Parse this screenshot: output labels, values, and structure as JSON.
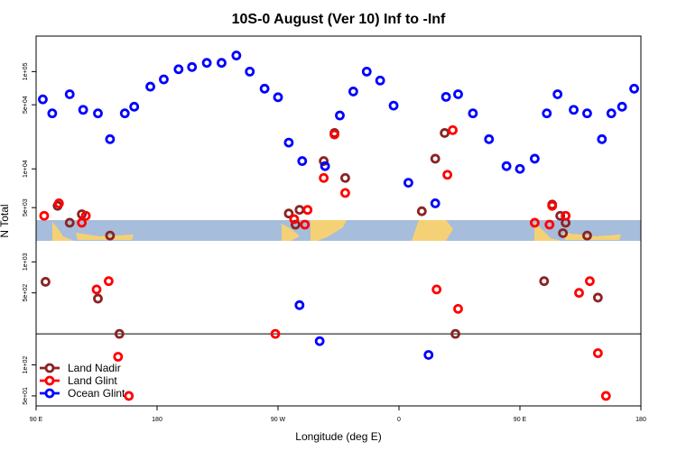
{
  "chart_data": {
    "type": "scatter",
    "title": "10S-0 August (Ver 10)   Inf to -Inf",
    "xlabel": "Longitude (deg E)",
    "ylabel": "N Total",
    "x_ticks": [
      {
        "x": 90,
        "label": "90 E"
      },
      {
        "x": 180,
        "label": "180"
      },
      {
        "x": 270,
        "label": "90 W"
      },
      {
        "x": 360,
        "label": "0"
      },
      {
        "x": 450,
        "label": "90 E"
      },
      {
        "x": 540,
        "label": "180"
      }
    ],
    "xlim": [
      90,
      540
    ],
    "upper_panel": {
      "scale": "log",
      "ylim": [
        40000,
        210000
      ],
      "y_ticks": [
        {
          "y": 50000,
          "label": "5e+04"
        },
        {
          "y": 100000,
          "label": "1e+05"
        }
      ]
    },
    "middle_panel": {
      "scale": "log",
      "ylim": [
        4000,
        26000
      ],
      "y_ticks": [
        {
          "y": 5000,
          "label": "5e+03"
        },
        {
          "y": 10000,
          "label": "1e+04"
        }
      ]
    },
    "lower_panel": {
      "scale": "log",
      "ylim": [
        40,
        1600
      ],
      "y_ticks": [
        {
          "y": 50,
          "label": "5e+01"
        },
        {
          "y": 100,
          "label": "1e+02"
        },
        {
          "y": 500,
          "label": "5e+02"
        },
        {
          "y": 1000,
          "label": "1e+03"
        }
      ]
    },
    "reference_line_y": 200,
    "legend_position": "bottom-left",
    "series": [
      {
        "name": "Land Nadir",
        "color": "#8b2323",
        "points": [
          [
            106,
            3500
          ],
          [
            115,
            2400
          ],
          [
            97,
            640
          ],
          [
            124,
            2900
          ],
          [
            136,
            440
          ],
          [
            145,
            1800
          ],
          [
            152,
            200
          ],
          [
            278,
            4500
          ],
          [
            283,
            2300
          ],
          [
            286,
            3200
          ],
          [
            304,
            11500
          ],
          [
            312,
            19000
          ],
          [
            320,
            8500
          ],
          [
            377,
            3100
          ],
          [
            387,
            12000
          ],
          [
            394,
            19000
          ],
          [
            402,
            200
          ],
          [
            468,
            650
          ],
          [
            474,
            3600
          ],
          [
            480,
            2800
          ],
          [
            482,
            1900
          ],
          [
            484,
            2400
          ],
          [
            500,
            1800
          ],
          [
            508,
            450
          ]
        ]
      },
      {
        "name": "Land Glint",
        "color": "#ff0000",
        "points": [
          [
            96,
            2800
          ],
          [
            107,
            3700
          ],
          [
            124,
            2400
          ],
          [
            127,
            2800
          ],
          [
            135,
            540
          ],
          [
            144,
            650
          ],
          [
            151,
            120
          ],
          [
            159,
            50
          ],
          [
            268,
            200
          ],
          [
            282,
            2600
          ],
          [
            290,
            2300
          ],
          [
            292,
            4800
          ],
          [
            304,
            8500
          ],
          [
            312,
            18500
          ],
          [
            320,
            6500
          ],
          [
            388,
            540
          ],
          [
            396,
            9000
          ],
          [
            400,
            20000
          ],
          [
            404,
            350
          ],
          [
            461,
            2400
          ],
          [
            472,
            2300
          ],
          [
            474,
            3500
          ],
          [
            484,
            2800
          ],
          [
            494,
            500
          ],
          [
            502,
            650
          ],
          [
            508,
            130
          ],
          [
            514,
            50
          ]
        ]
      },
      {
        "name": "Ocean Glint",
        "color": "#0000ff",
        "points": [
          [
            95,
            56000
          ],
          [
            102,
            27000
          ],
          [
            115,
            38000
          ],
          [
            125,
            45000
          ],
          [
            136,
            27000
          ],
          [
            145,
            17000
          ],
          [
            156,
            27000
          ],
          [
            163,
            48000
          ],
          [
            175,
            73000
          ],
          [
            185,
            85000
          ],
          [
            196,
            105000
          ],
          [
            206,
            110000
          ],
          [
            217,
            120000
          ],
          [
            228,
            120000
          ],
          [
            239,
            140000
          ],
          [
            249,
            100000
          ],
          [
            260,
            70000
          ],
          [
            270,
            36000
          ],
          [
            278,
            16000
          ],
          [
            286,
            380
          ],
          [
            288,
            11500
          ],
          [
            301,
            170
          ],
          [
            305,
            10500
          ],
          [
            316,
            26000
          ],
          [
            326,
            66000
          ],
          [
            336,
            100000
          ],
          [
            346,
            83000
          ],
          [
            356,
            31000
          ],
          [
            367,
            7800
          ],
          [
            382,
            125
          ],
          [
            387,
            5400
          ],
          [
            395,
            59000
          ],
          [
            404,
            38000
          ],
          [
            415,
            27000
          ],
          [
            427,
            17000
          ],
          [
            440,
            10500
          ],
          [
            450,
            10000
          ],
          [
            461,
            12000
          ],
          [
            470,
            27000
          ],
          [
            478,
            38000
          ],
          [
            490,
            45000
          ],
          [
            500,
            27000
          ],
          [
            511,
            17000
          ],
          [
            518,
            27000
          ],
          [
            526,
            48000
          ],
          [
            535,
            70000
          ]
        ]
      }
    ]
  }
}
